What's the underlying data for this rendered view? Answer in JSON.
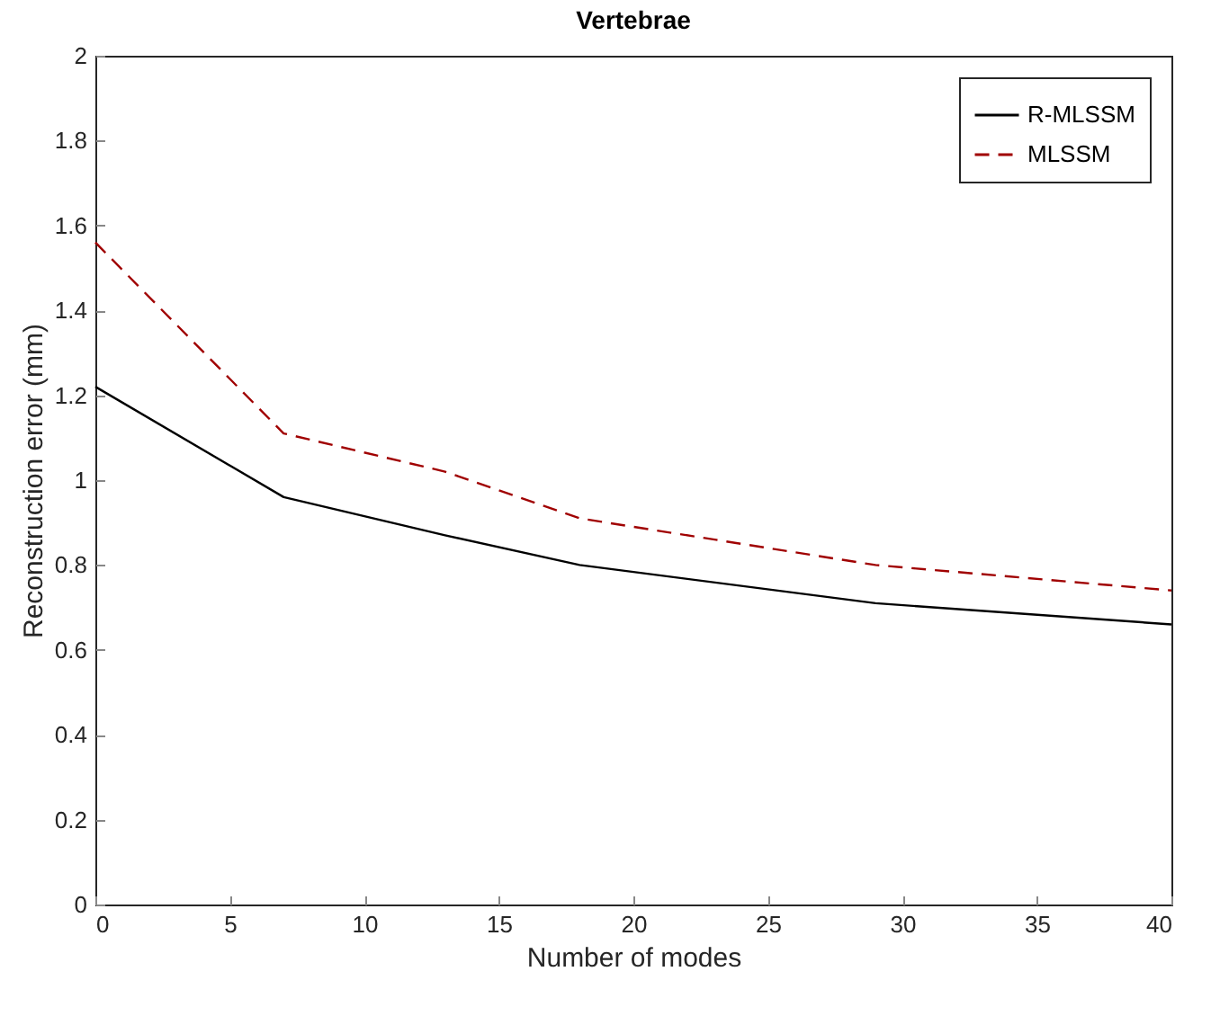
{
  "chart_data": {
    "type": "line",
    "title": "Vertebrae",
    "xlabel": "Number of modes",
    "ylabel": "Reconstruction error (mm)",
    "x": [
      0,
      7,
      13,
      18,
      29,
      40
    ],
    "series": [
      {
        "name": "R-MLSSM",
        "color": "#000000",
        "line_style": "solid",
        "values": [
          1.22,
          0.96,
          0.87,
          0.8,
          0.71,
          0.66
        ]
      },
      {
        "name": "MLSSM",
        "color": "#a00000",
        "line_style": "dashed",
        "values": [
          1.56,
          1.11,
          1.02,
          0.91,
          0.8,
          0.74
        ]
      }
    ],
    "xlim": [
      0,
      40
    ],
    "xticks": [
      0,
      5,
      10,
      15,
      20,
      25,
      30,
      35,
      40
    ],
    "ylim": [
      0,
      2
    ],
    "yticks": [
      0,
      0.2,
      0.4,
      0.6,
      0.8,
      1,
      1.2,
      1.4,
      1.6,
      1.8,
      2
    ],
    "grid": false,
    "legend": "top right",
    "marker": "none"
  }
}
